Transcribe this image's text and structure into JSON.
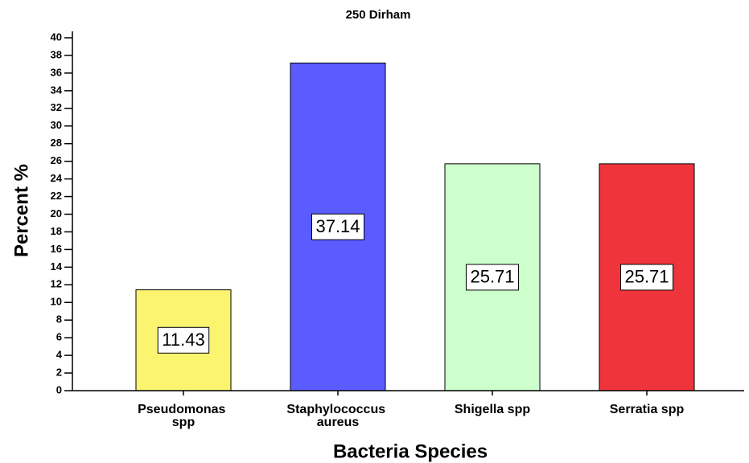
{
  "chart_data": {
    "type": "bar",
    "title": "250 Dirham",
    "x_label": "Bacteria Species",
    "y_label": "Percent %",
    "categories": [
      "Pseudomonas spp",
      "Staphylococcus aureus",
      "Shigella spp",
      "Serratia spp"
    ],
    "values": [
      11.43,
      37.14,
      25.71,
      25.71
    ],
    "colors": [
      "#faf46f",
      "#5a5cff",
      "#ccffcc",
      "#f0343c"
    ],
    "ylim": [
      0,
      40
    ],
    "yticks": [
      0,
      2,
      4,
      6,
      8,
      10,
      12,
      14,
      16,
      18,
      20,
      22,
      24,
      26,
      28,
      30,
      32,
      34,
      36,
      38,
      40
    ],
    "grid": false
  }
}
